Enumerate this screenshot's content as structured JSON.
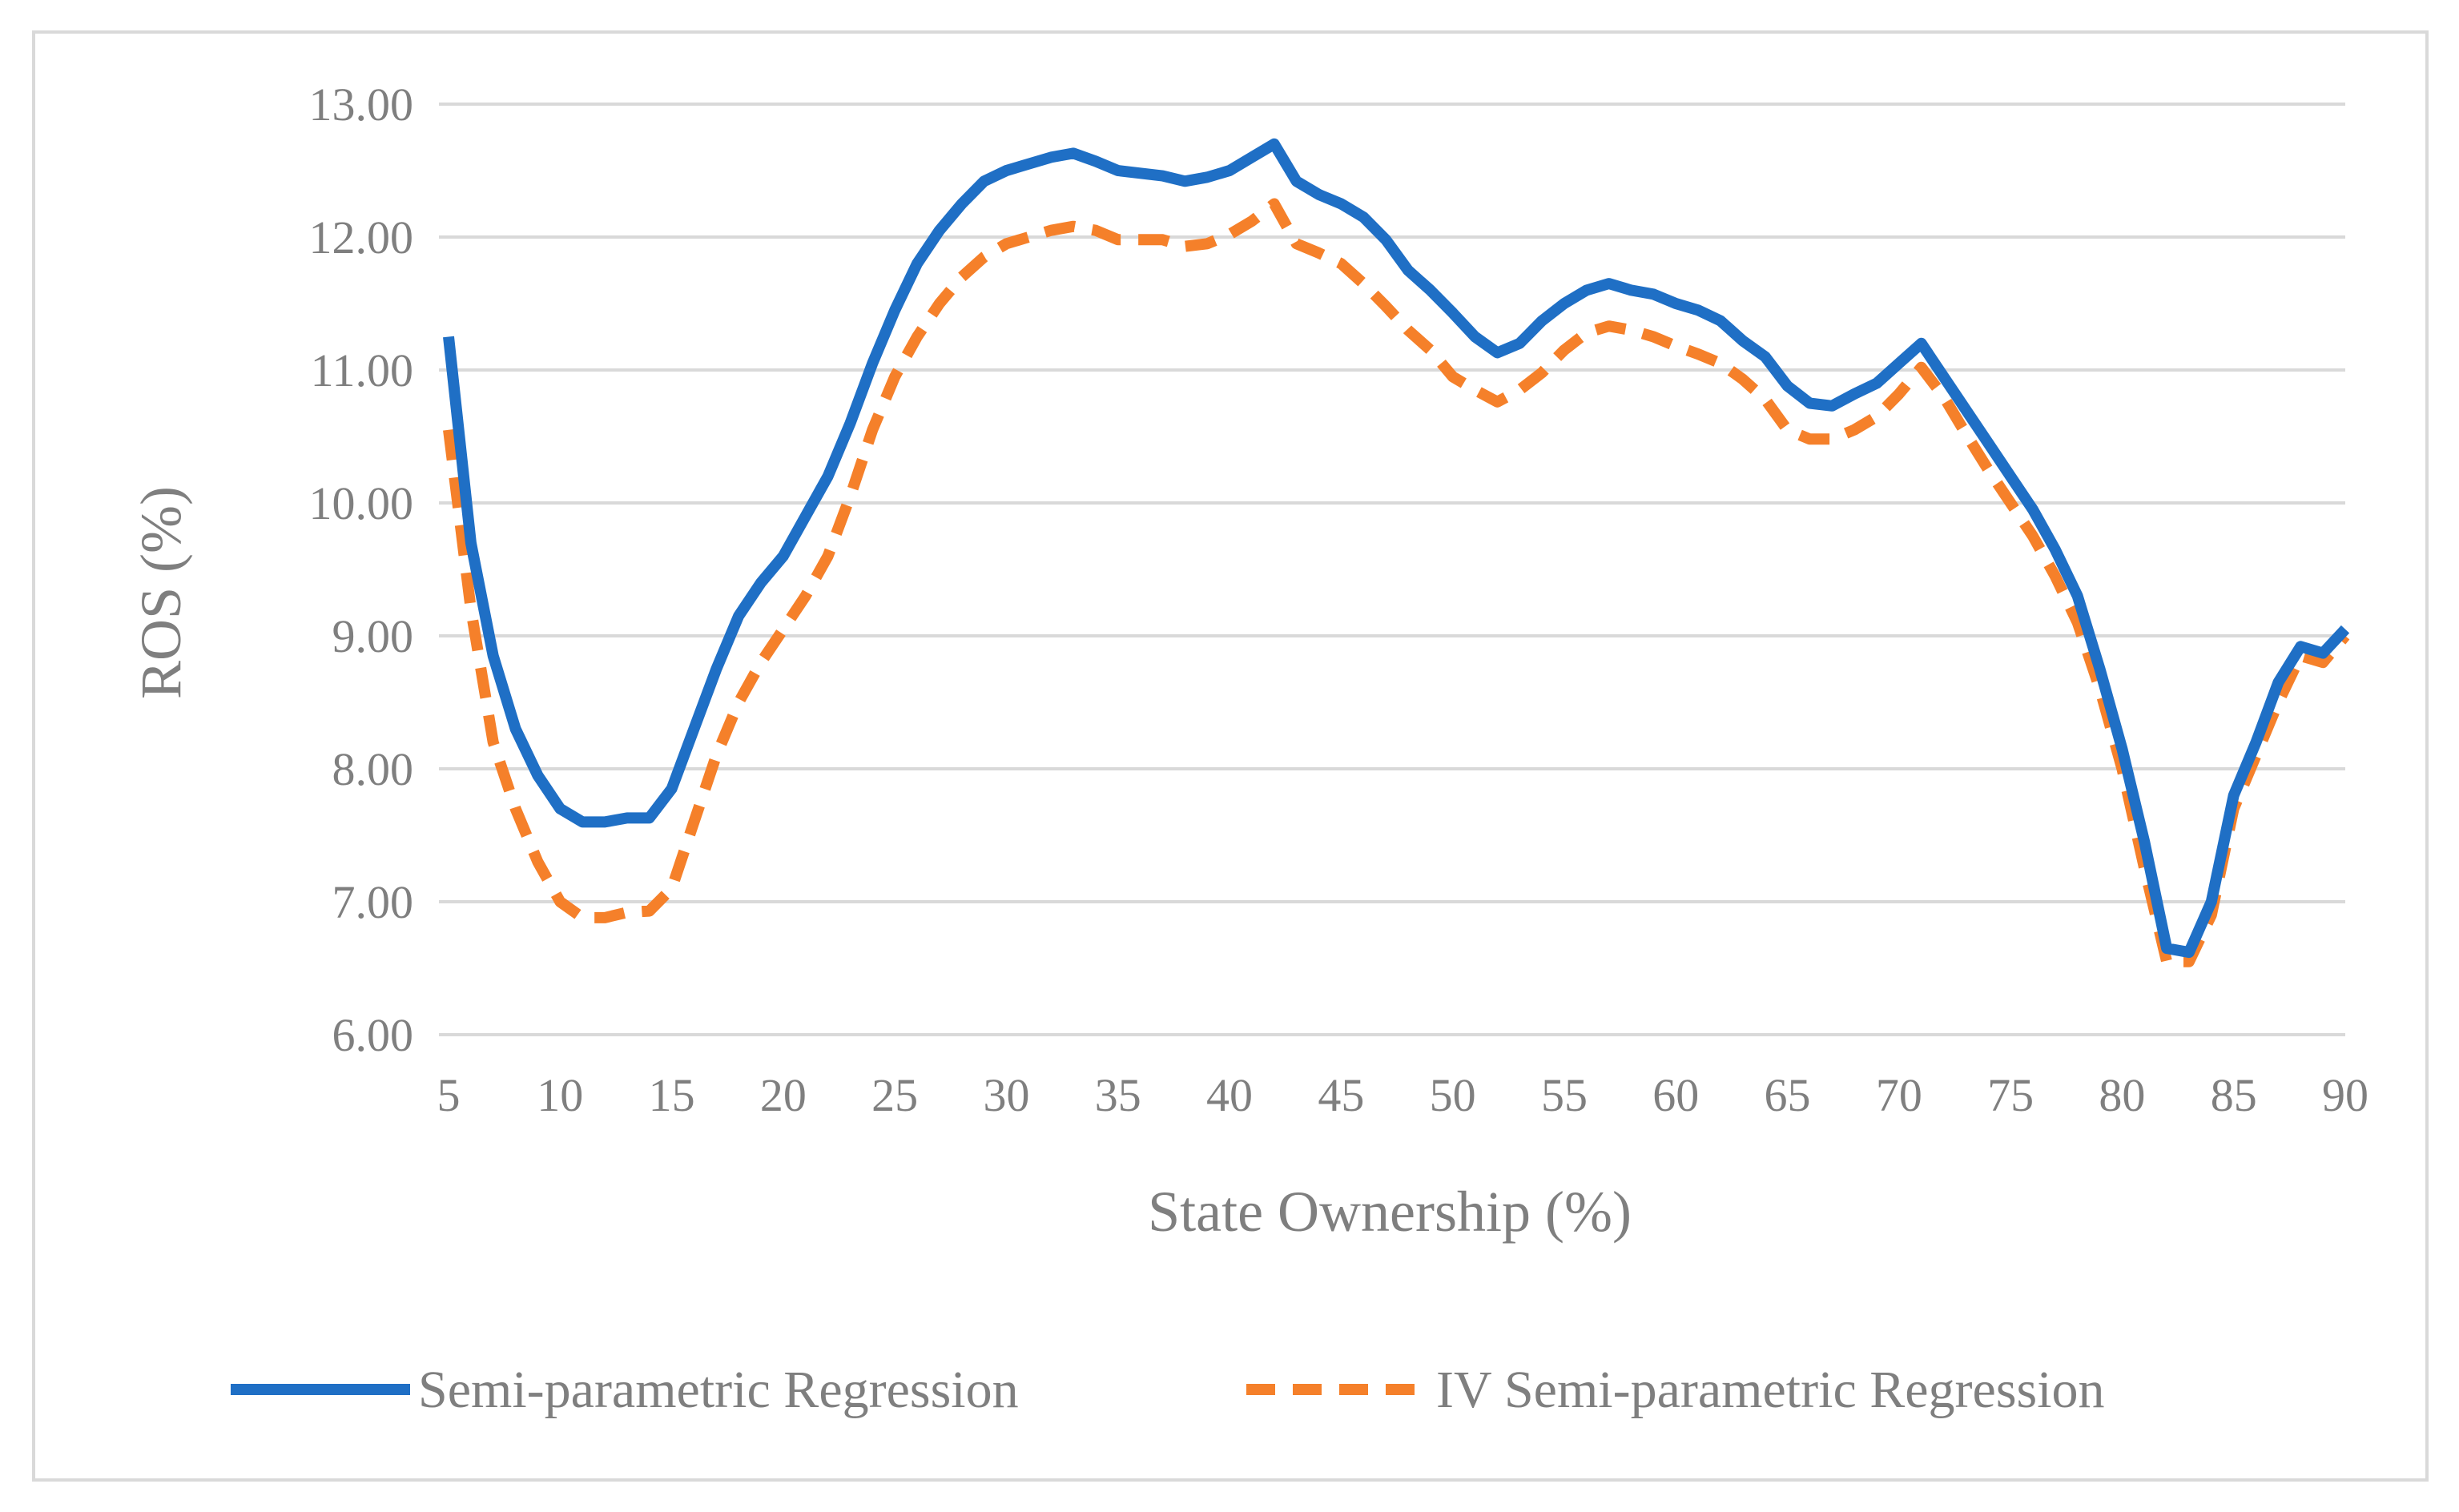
{
  "chart_data": {
    "type": "line",
    "title": "",
    "xlabel": "State Ownership (%)",
    "ylabel": "ROS (%)",
    "xlim": [
      5,
      90
    ],
    "ylim": [
      6,
      13
    ],
    "grid": true,
    "legend_position": "bottom",
    "x_ticks": [
      5,
      10,
      15,
      20,
      25,
      30,
      35,
      40,
      45,
      50,
      55,
      60,
      65,
      70,
      75,
      80,
      85,
      90
    ],
    "y_ticks": [
      "6.00",
      "7.00",
      "8.00",
      "9.00",
      "10.00",
      "11.00",
      "12.00",
      "13.00"
    ],
    "x": [
      5,
      6,
      7,
      8,
      9,
      10,
      11,
      12,
      13,
      14,
      15,
      16,
      17,
      18,
      19,
      20,
      21,
      22,
      23,
      24,
      25,
      26,
      27,
      28,
      29,
      30,
      31,
      32,
      33,
      34,
      35,
      36,
      37,
      38,
      39,
      40,
      41,
      42,
      43,
      44,
      45,
      46,
      47,
      48,
      49,
      50,
      51,
      52,
      53,
      54,
      55,
      56,
      57,
      58,
      59,
      60,
      61,
      62,
      63,
      64,
      65,
      66,
      67,
      68,
      69,
      70,
      71,
      72,
      73,
      74,
      75,
      76,
      77,
      78,
      79,
      80,
      81,
      82,
      83,
      84,
      85,
      86,
      87,
      88,
      89,
      90
    ],
    "series": [
      {
        "name": "Semi-parametric Regression",
        "color": "#1f6fc5",
        "style": "solid",
        "values": [
          11.25,
          9.7,
          8.85,
          8.3,
          7.95,
          7.7,
          7.6,
          7.6,
          7.63,
          7.63,
          7.85,
          8.3,
          8.75,
          9.15,
          9.4,
          9.6,
          9.9,
          10.2,
          10.6,
          11.05,
          11.45,
          11.8,
          12.05,
          12.25,
          12.42,
          12.5,
          12.55,
          12.6,
          12.63,
          12.57,
          12.5,
          12.48,
          12.46,
          12.42,
          12.45,
          12.5,
          12.6,
          12.7,
          12.42,
          12.32,
          12.25,
          12.15,
          11.98,
          11.75,
          11.6,
          11.43,
          11.25,
          11.13,
          11.2,
          11.37,
          11.5,
          11.6,
          11.65,
          11.6,
          11.57,
          11.5,
          11.45,
          11.37,
          11.22,
          11.1,
          10.88,
          10.75,
          10.73,
          10.82,
          10.9,
          11.05,
          11.2,
          10.95,
          10.7,
          10.45,
          10.2,
          9.95,
          9.65,
          9.3,
          8.75,
          8.15,
          7.45,
          6.65,
          6.62,
          7.0,
          7.8,
          8.2,
          8.65,
          8.92,
          8.87,
          9.05
        ]
      },
      {
        "name": "IV Semi-parametric Regression",
        "color": "#f5802a",
        "style": "dashed",
        "values": [
          10.55,
          9.2,
          8.2,
          7.7,
          7.3,
          7.0,
          6.88,
          6.88,
          6.92,
          6.93,
          7.1,
          7.6,
          8.1,
          8.5,
          8.8,
          9.05,
          9.3,
          9.6,
          10.05,
          10.55,
          10.95,
          11.25,
          11.5,
          11.7,
          11.85,
          11.95,
          12.0,
          12.05,
          12.08,
          12.05,
          11.98,
          11.98,
          11.98,
          11.93,
          11.95,
          12.02,
          12.12,
          12.25,
          11.95,
          11.88,
          11.8,
          11.65,
          11.48,
          11.3,
          11.15,
          10.95,
          10.85,
          10.76,
          10.85,
          10.98,
          11.15,
          11.28,
          11.33,
          11.3,
          11.25,
          11.18,
          11.12,
          11.05,
          10.93,
          10.78,
          10.55,
          10.48,
          10.48,
          10.55,
          10.65,
          10.82,
          11.02,
          10.8,
          10.52,
          10.25,
          10.0,
          9.75,
          9.45,
          9.1,
          8.6,
          8.0,
          7.25,
          6.55,
          6.55,
          6.9,
          7.7,
          8.1,
          8.5,
          8.85,
          8.8,
          9.0
        ]
      }
    ]
  }
}
